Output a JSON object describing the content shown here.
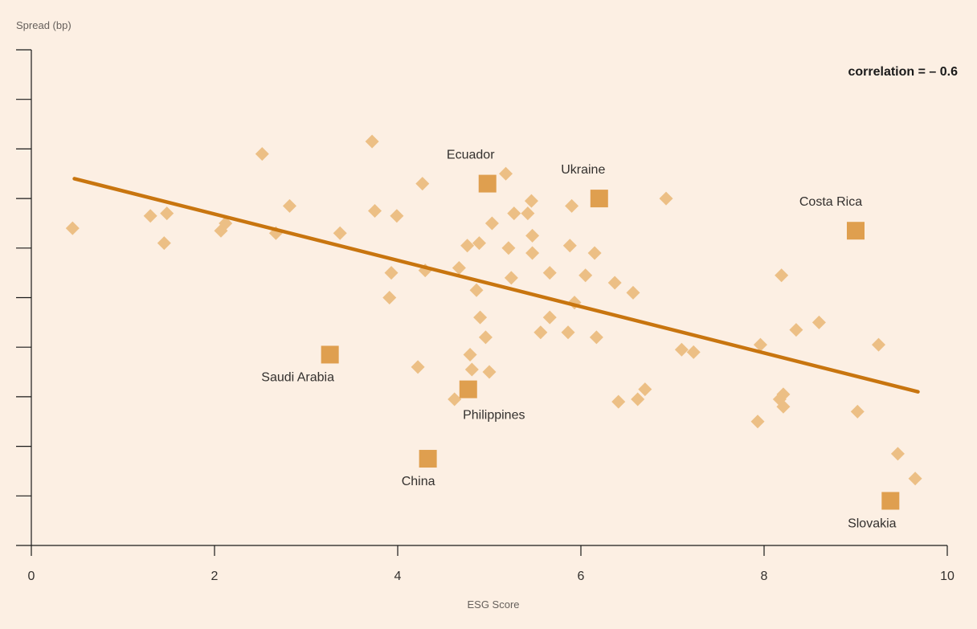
{
  "chart_data": {
    "type": "scatter",
    "title": "",
    "ylabel": "Spread (bp)",
    "xlabel": "ESG Score",
    "xlim": [
      0,
      10
    ],
    "x_ticks": [
      0,
      2,
      4,
      6,
      8,
      10
    ],
    "ylim": [
      0,
      10
    ],
    "y_tick_labels_shown": false,
    "grid": false,
    "annotation": "correlation  =  – 0.6",
    "trend_line": {
      "x": [
        0.47,
        9.68
      ],
      "y": [
        7.4,
        3.1
      ],
      "color": "#c8750f"
    },
    "points_color": "#ecbf85",
    "highlight_color": "#df9f4f",
    "points": [
      [
        0.45,
        6.4
      ],
      [
        1.3,
        6.65
      ],
      [
        1.48,
        6.7
      ],
      [
        1.45,
        6.1
      ],
      [
        2.07,
        6.35
      ],
      [
        2.12,
        6.5
      ],
      [
        2.52,
        7.9
      ],
      [
        2.67,
        6.3
      ],
      [
        2.82,
        6.85
      ],
      [
        3.37,
        6.3
      ],
      [
        3.72,
        8.15
      ],
      [
        3.75,
        6.75
      ],
      [
        3.93,
        5.5
      ],
      [
        3.91,
        5.0
      ],
      [
        3.99,
        6.65
      ],
      [
        4.22,
        3.6
      ],
      [
        4.27,
        7.3
      ],
      [
        4.3,
        5.55
      ],
      [
        4.62,
        2.95
      ],
      [
        4.67,
        5.6
      ],
      [
        4.76,
        6.05
      ],
      [
        4.79,
        3.85
      ],
      [
        4.81,
        3.55
      ],
      [
        4.86,
        5.15
      ],
      [
        4.89,
        6.1
      ],
      [
        4.9,
        4.6
      ],
      [
        4.96,
        4.2
      ],
      [
        5.0,
        3.5
      ],
      [
        5.03,
        6.5
      ],
      [
        5.18,
        7.5
      ],
      [
        5.21,
        6.0
      ],
      [
        5.24,
        5.4
      ],
      [
        5.27,
        6.7
      ],
      [
        5.42,
        6.7
      ],
      [
        5.47,
        6.25
      ],
      [
        5.47,
        5.9
      ],
      [
        5.46,
        6.95
      ],
      [
        5.56,
        4.3
      ],
      [
        5.66,
        4.6
      ],
      [
        5.66,
        5.5
      ],
      [
        5.86,
        4.3
      ],
      [
        5.88,
        6.05
      ],
      [
        5.9,
        6.85
      ],
      [
        5.93,
        4.9
      ],
      [
        6.05,
        5.45
      ],
      [
        6.15,
        5.9
      ],
      [
        6.17,
        4.2
      ],
      [
        6.37,
        5.3
      ],
      [
        6.41,
        2.9
      ],
      [
        6.57,
        5.1
      ],
      [
        6.62,
        2.95
      ],
      [
        6.7,
        3.15
      ],
      [
        6.93,
        7.0
      ],
      [
        7.1,
        3.95
      ],
      [
        7.23,
        3.9
      ],
      [
        7.93,
        2.5
      ],
      [
        7.96,
        4.05
      ],
      [
        8.17,
        2.95
      ],
      [
        8.19,
        5.45
      ],
      [
        8.21,
        3.05
      ],
      [
        8.21,
        2.8
      ],
      [
        8.35,
        4.35
      ],
      [
        8.6,
        4.5
      ],
      [
        9.02,
        2.7
      ],
      [
        9.25,
        4.05
      ],
      [
        9.46,
        1.85
      ],
      [
        9.65,
        1.35
      ]
    ],
    "highlighted": [
      {
        "name": "Ecuador",
        "x": 4.98,
        "y": 7.3
      },
      {
        "name": "Ukraine",
        "x": 6.2,
        "y": 7.0
      },
      {
        "name": "Costa Rica",
        "x": 9.0,
        "y": 6.35
      },
      {
        "name": "Saudi Arabia",
        "x": 3.26,
        "y": 3.85
      },
      {
        "name": "Philippines",
        "x": 4.77,
        "y": 3.15
      },
      {
        "name": "China",
        "x": 4.33,
        "y": 1.75
      },
      {
        "name": "Slovakia",
        "x": 9.38,
        "y": 0.9
      }
    ]
  }
}
